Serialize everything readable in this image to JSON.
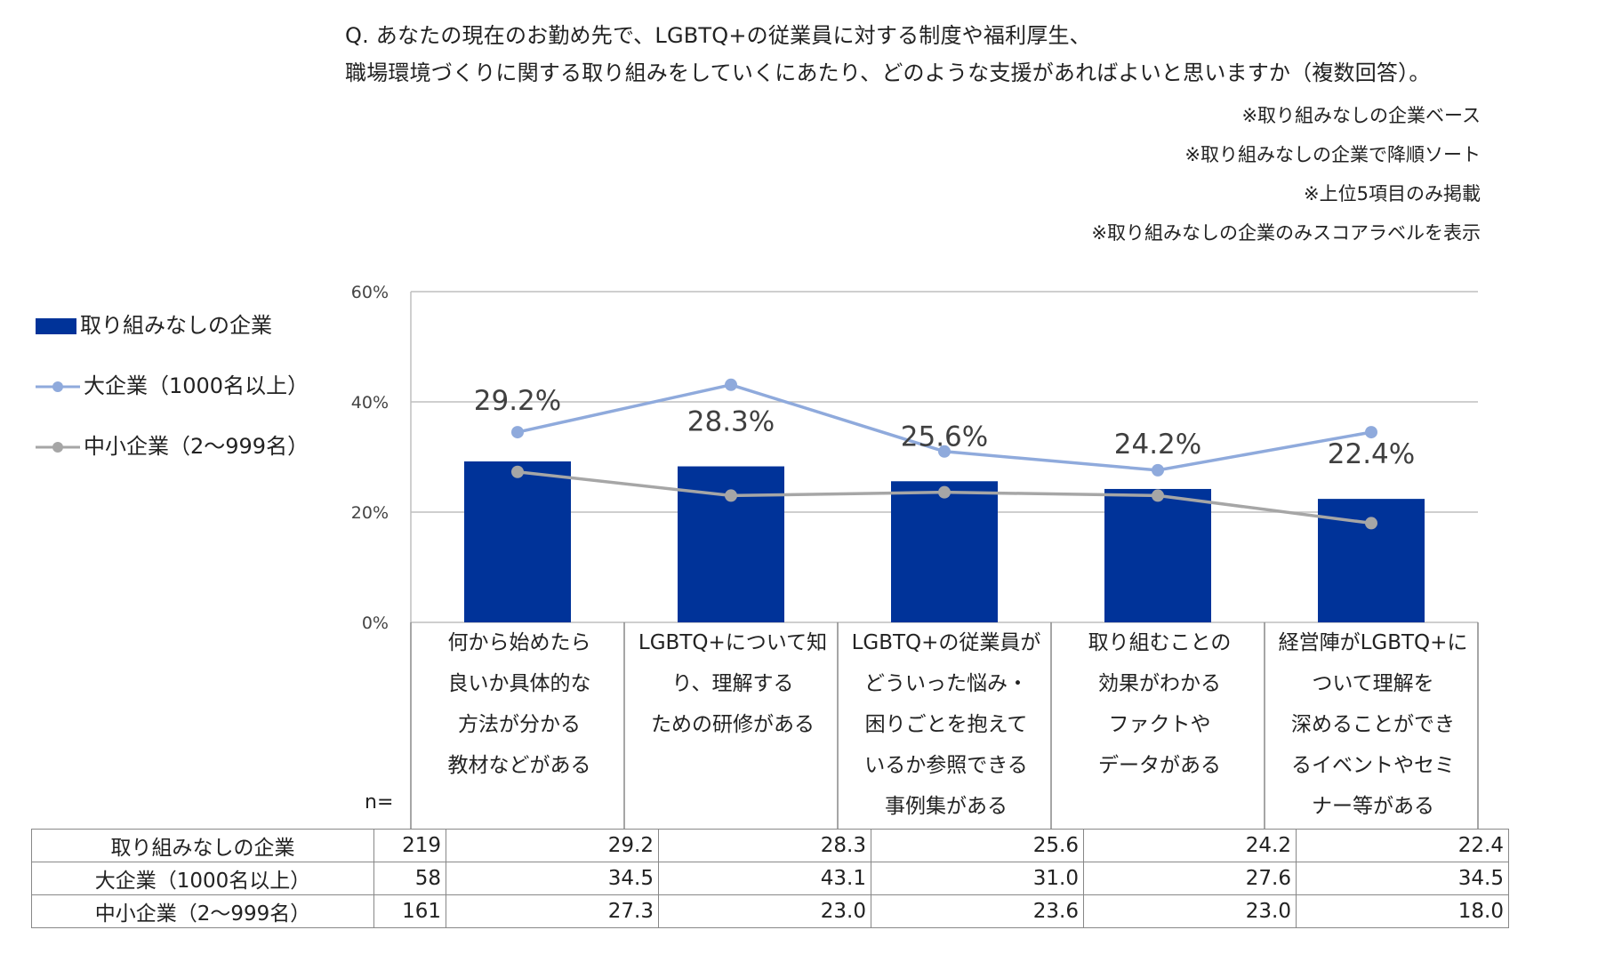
{
  "question": {
    "line1": "Q. あなたの現在のお勤め先で、LGBTQ+の従業員に対する制度や福利厚生、",
    "line2": "職場環境づくりに関する取り組みをしていくにあたり、どのような支援があればよいと思いますか（複数回答）。"
  },
  "notes": [
    "※取り組みなしの企業ベース",
    "※取り組みなしの企業で降順ソート",
    "※上位5項目のみ掲載",
    "※取り組みなしの企業のみスコアラベルを表示"
  ],
  "chart_data": {
    "type": "bar",
    "title": "",
    "categories": [
      "何から始めたら\n良いか具体的な\n方法が分かる\n教材などがある",
      "LGBTQ+について知\nり、理解する\nための研修がある",
      "LGBTQ+の従業員が\nどういった悩み・\n困りごとを抱えて\nいるか参照できる\n事例集がある",
      "取り組むことの\n効果がわかる\nファクトや\nデータがある",
      "経営陣がLGBTQ+に\nついて理解を\n深めることができ\nるイベントやセミ\nナー等がある"
    ],
    "series": [
      {
        "name": "取り組みなしの企業",
        "kind": "bar",
        "color": "#003399",
        "n": "219",
        "values": [
          29.2,
          28.3,
          25.6,
          24.2,
          22.4
        ],
        "labels": [
          "29.2%",
          "28.3%",
          "25.6%",
          "24.2%",
          "22.4%"
        ],
        "table": [
          "29.2",
          "28.3",
          "25.6",
          "24.2",
          "22.4"
        ]
      },
      {
        "name": "大企業（1000名以上）",
        "kind": "line",
        "color": "#8faadc",
        "n": "58",
        "values": [
          34.5,
          43.1,
          31.0,
          27.6,
          34.5
        ],
        "table": [
          "34.5",
          "43.1",
          "31.0",
          "27.6",
          "34.5"
        ]
      },
      {
        "name": "中小企業（2〜999名）",
        "kind": "line",
        "color": "#a6a6a6",
        "n": "161",
        "values": [
          27.3,
          23.0,
          23.6,
          23.0,
          18.0
        ],
        "table": [
          "27.3",
          "23.0",
          "23.6",
          "23.0",
          "18.0"
        ]
      }
    ],
    "ylim": [
      0,
      60
    ],
    "yticks": [
      "0%",
      "20%",
      "40%",
      "60%"
    ],
    "ytick_values": [
      0,
      20,
      40,
      60
    ],
    "grid": true,
    "xlabel": "",
    "ylabel": "",
    "n_label": "n="
  }
}
